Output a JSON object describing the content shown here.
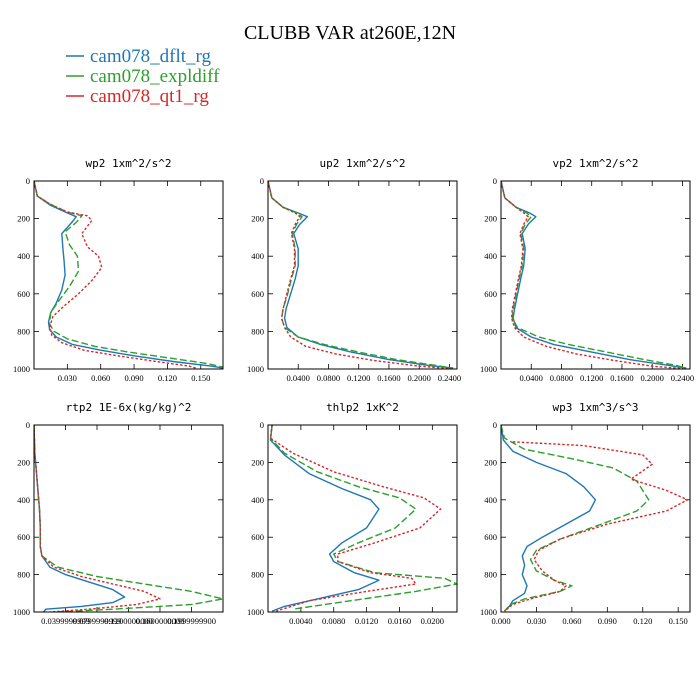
{
  "figure": {
    "title": "CLUBB VAR at260E,12N",
    "legend": [
      {
        "name": "cam078_dflt_rg",
        "color": "#1f77b4",
        "dash": "solid"
      },
      {
        "name": "cam078_expldiff",
        "color": "#2ca02c",
        "dash": "dashed"
      },
      {
        "name": "cam078_qt1_rg",
        "color": "#d62728",
        "dash": "dotted"
      }
    ]
  },
  "chart_data": [
    {
      "type": "line",
      "title": "wp2  1xm^2/s^2",
      "xlim": [
        0,
        0.17
      ],
      "ylim": [
        1000,
        0
      ],
      "y_ticks": [
        0,
        200,
        400,
        600,
        800,
        1000
      ],
      "x_ticks": [
        0.03,
        0.06,
        0.09,
        0.12,
        0.15
      ],
      "x_tick_labels": [
        "0.030",
        "0.060",
        "0.090",
        "0.120",
        "0.150"
      ],
      "series": [
        {
          "name": "cam078_dflt_rg",
          "x": [
            0,
            0.003,
            0.015,
            0.03,
            0.038,
            0.034,
            0.025,
            0.026,
            0.027,
            0.028,
            0.025,
            0.02,
            0.015,
            0.013,
            0.014,
            0.02,
            0.035,
            0.06,
            0.09,
            0.125,
            0.16,
            0.17
          ],
          "y": [
            0,
            80,
            130,
            170,
            190,
            220,
            280,
            360,
            420,
            500,
            580,
            650,
            700,
            750,
            790,
            830,
            870,
            900,
            930,
            960,
            985,
            995
          ]
        },
        {
          "name": "cam078_expldiff",
          "x": [
            0,
            0.003,
            0.015,
            0.03,
            0.043,
            0.038,
            0.028,
            0.032,
            0.039,
            0.04,
            0.032,
            0.022,
            0.015,
            0.014,
            0.018,
            0.03,
            0.055,
            0.085,
            0.12,
            0.155,
            0.17
          ],
          "y": [
            0,
            80,
            125,
            165,
            185,
            220,
            270,
            340,
            400,
            480,
            560,
            640,
            700,
            760,
            800,
            840,
            880,
            910,
            940,
            970,
            990
          ]
        },
        {
          "name": "cam078_qt1_rg",
          "x": [
            0,
            0.003,
            0.015,
            0.03,
            0.048,
            0.052,
            0.043,
            0.048,
            0.058,
            0.061,
            0.052,
            0.04,
            0.028,
            0.017,
            0.014,
            0.016,
            0.025,
            0.045,
            0.075,
            0.11,
            0.14,
            0.147
          ],
          "y": [
            0,
            80,
            125,
            165,
            185,
            210,
            280,
            350,
            400,
            460,
            530,
            600,
            660,
            720,
            780,
            820,
            860,
            900,
            930,
            960,
            985,
            998
          ]
        }
      ]
    },
    {
      "type": "line",
      "title": "up2  1xm^2/s^2",
      "xlim": [
        0,
        0.25
      ],
      "ylim": [
        1000,
        0
      ],
      "y_ticks": [
        0,
        200,
        400,
        600,
        800,
        1000
      ],
      "x_ticks": [
        0.04,
        0.08,
        0.12,
        0.16,
        0.2,
        0.24
      ],
      "x_tick_labels": [
        "0.0400",
        "0.0800",
        "0.1200",
        "0.1600",
        "0.2000",
        "0.2400"
      ],
      "series": [
        {
          "name": "cam078_dflt_rg",
          "x": [
            0,
            0.005,
            0.02,
            0.04,
            0.052,
            0.042,
            0.034,
            0.04,
            0.04,
            0.036,
            0.03,
            0.024,
            0.022,
            0.025,
            0.04,
            0.07,
            0.11,
            0.16,
            0.21,
            0.245
          ],
          "y": [
            0,
            90,
            140,
            170,
            190,
            230,
            280,
            360,
            450,
            520,
            600,
            680,
            730,
            780,
            830,
            870,
            910,
            950,
            980,
            995
          ]
        },
        {
          "name": "cam078_expldiff",
          "x": [
            0,
            0.005,
            0.02,
            0.038,
            0.045,
            0.038,
            0.032,
            0.036,
            0.036,
            0.031,
            0.026,
            0.02,
            0.018,
            0.022,
            0.04,
            0.075,
            0.12,
            0.17,
            0.22,
            0.245
          ],
          "y": [
            0,
            90,
            140,
            170,
            190,
            230,
            280,
            360,
            450,
            520,
            600,
            680,
            730,
            780,
            830,
            870,
            910,
            950,
            980,
            995
          ]
        },
        {
          "name": "cam078_qt1_rg",
          "x": [
            0,
            0.005,
            0.02,
            0.036,
            0.042,
            0.036,
            0.031,
            0.035,
            0.035,
            0.03,
            0.025,
            0.02,
            0.018,
            0.022,
            0.03,
            0.05,
            0.09,
            0.14,
            0.2,
            0.24
          ],
          "y": [
            0,
            90,
            140,
            170,
            190,
            230,
            280,
            360,
            450,
            520,
            600,
            680,
            730,
            780,
            830,
            880,
            920,
            955,
            985,
            998
          ]
        }
      ]
    },
    {
      "type": "line",
      "title": "vp2  1xm^2/s^2",
      "xlim": [
        0,
        0.25
      ],
      "ylim": [
        1000,
        0
      ],
      "y_ticks": [
        0,
        200,
        400,
        600,
        800,
        1000
      ],
      "x_ticks": [
        0.04,
        0.08,
        0.12,
        0.16,
        0.2,
        0.24
      ],
      "x_tick_labels": [
        "0.0400",
        "0.0800",
        "0.1200",
        "0.1600",
        "0.2000",
        "0.2400"
      ],
      "series": [
        {
          "name": "cam078_dflt_rg",
          "x": [
            0,
            0.005,
            0.02,
            0.038,
            0.046,
            0.036,
            0.028,
            0.032,
            0.03,
            0.026,
            0.022,
            0.018,
            0.016,
            0.02,
            0.04,
            0.07,
            0.12,
            0.17,
            0.22,
            0.245
          ],
          "y": [
            0,
            90,
            140,
            170,
            190,
            230,
            280,
            360,
            450,
            520,
            600,
            680,
            730,
            780,
            830,
            870,
            910,
            950,
            980,
            995
          ]
        },
        {
          "name": "cam078_expldiff",
          "x": [
            0,
            0.005,
            0.02,
            0.034,
            0.04,
            0.032,
            0.026,
            0.03,
            0.028,
            0.024,
            0.02,
            0.016,
            0.015,
            0.022,
            0.05,
            0.09,
            0.14,
            0.19,
            0.23,
            0.245
          ],
          "y": [
            0,
            90,
            140,
            170,
            190,
            230,
            280,
            360,
            450,
            520,
            600,
            680,
            730,
            780,
            830,
            870,
            910,
            950,
            980,
            995
          ]
        },
        {
          "name": "cam078_qt1_rg",
          "x": [
            0,
            0.005,
            0.02,
            0.03,
            0.036,
            0.03,
            0.025,
            0.029,
            0.027,
            0.023,
            0.019,
            0.015,
            0.014,
            0.018,
            0.03,
            0.06,
            0.1,
            0.15,
            0.2,
            0.24
          ],
          "y": [
            0,
            90,
            140,
            170,
            190,
            230,
            280,
            360,
            450,
            520,
            600,
            680,
            730,
            780,
            830,
            880,
            920,
            955,
            985,
            998
          ]
        }
      ]
    },
    {
      "type": "line",
      "title": "rtp2  1E-6x(kg/kg)^2",
      "xlim": [
        0,
        0.24
      ],
      "ylim": [
        1000,
        0
      ],
      "y_ticks": [
        0,
        200,
        400,
        600,
        800,
        1000
      ],
      "x_ticks": [
        0.04,
        0.08,
        0.12,
        0.16,
        0.2
      ],
      "x_tick_labels": [
        "0.0399999999",
        "0.0799999999",
        "0.1200000000",
        "0.1600000000",
        "0.1999999900"
      ],
      "series": [
        {
          "name": "cam078_dflt_rg",
          "x": [
            0,
            0.001,
            0.003,
            0.005,
            0.007,
            0.008,
            0.008,
            0.01,
            0.02,
            0.04,
            0.07,
            0.1,
            0.115,
            0.1,
            0.06,
            0.015,
            0.012
          ],
          "y": [
            0,
            150,
            250,
            350,
            450,
            550,
            650,
            700,
            760,
            800,
            840,
            880,
            920,
            950,
            970,
            985,
            1000
          ]
        },
        {
          "name": "cam078_expldiff",
          "x": [
            0,
            0.001,
            0.003,
            0.005,
            0.007,
            0.008,
            0.008,
            0.01,
            0.03,
            0.08,
            0.14,
            0.2,
            0.24,
            0.2,
            0.1,
            0.03
          ],
          "y": [
            0,
            150,
            250,
            350,
            450,
            550,
            650,
            700,
            760,
            810,
            850,
            890,
            930,
            960,
            985,
            1000
          ]
        },
        {
          "name": "cam078_qt1_rg",
          "x": [
            0,
            0.001,
            0.003,
            0.005,
            0.007,
            0.008,
            0.008,
            0.01,
            0.025,
            0.06,
            0.1,
            0.14,
            0.16,
            0.13,
            0.07,
            0.02
          ],
          "y": [
            0,
            150,
            250,
            350,
            450,
            550,
            650,
            700,
            760,
            810,
            850,
            890,
            930,
            960,
            985,
            1000
          ]
        }
      ]
    },
    {
      "type": "line",
      "title": "thlp2  1xK^2",
      "xlim": [
        0,
        0.023
      ],
      "ylim": [
        1000,
        0
      ],
      "y_ticks": [
        0,
        200,
        400,
        600,
        800,
        1000
      ],
      "x_ticks": [
        0.004,
        0.008,
        0.012,
        0.016,
        0.02
      ],
      "x_tick_labels": [
        "0.0040",
        "0.0080",
        "0.0120",
        "0.0160",
        "0.0200"
      ],
      "series": [
        {
          "name": "cam078_dflt_rg",
          "x": [
            0.0005,
            0.0003,
            0.002,
            0.005,
            0.009,
            0.0125,
            0.0135,
            0.012,
            0.009,
            0.0075,
            0.008,
            0.0105,
            0.0135,
            0.011,
            0.006,
            0.002,
            0.0005
          ],
          "y": [
            0,
            80,
            160,
            260,
            340,
            400,
            450,
            550,
            630,
            690,
            730,
            790,
            830,
            880,
            930,
            970,
            995
          ]
        },
        {
          "name": "cam078_expldiff",
          "x": [
            0.0005,
            0.0003,
            0.002,
            0.006,
            0.011,
            0.016,
            0.018,
            0.0155,
            0.011,
            0.008,
            0.0085,
            0.013,
            0.0215,
            0.023,
            0.018,
            0.01,
            0.003
          ],
          "y": [
            0,
            70,
            150,
            250,
            330,
            390,
            450,
            550,
            630,
            690,
            730,
            790,
            820,
            850,
            890,
            940,
            985
          ]
        },
        {
          "name": "cam078_qt1_rg",
          "x": [
            0.0005,
            0.0003,
            0.003,
            0.008,
            0.014,
            0.019,
            0.021,
            0.0185,
            0.013,
            0.0085,
            0.0085,
            0.0125,
            0.0175,
            0.018,
            0.012,
            0.005,
            0.001
          ],
          "y": [
            0,
            70,
            150,
            250,
            330,
            390,
            450,
            550,
            630,
            690,
            730,
            790,
            820,
            850,
            890,
            940,
            995
          ]
        }
      ]
    },
    {
      "type": "line",
      "title": "wp3  1xm^3/s^3",
      "xlim": [
        0,
        0.16
      ],
      "ylim": [
        1000,
        0
      ],
      "y_ticks": [
        0,
        200,
        400,
        600,
        800,
        1000
      ],
      "x_ticks": [
        0,
        0.03,
        0.06,
        0.09,
        0.12,
        0.15
      ],
      "x_tick_labels": [
        "0.000",
        "0.030",
        "0.060",
        "0.090",
        "0.120",
        "0.150"
      ],
      "series": [
        {
          "name": "cam078_dflt_rg",
          "x": [
            0,
            0.002,
            0.01,
            0.03,
            0.055,
            0.07,
            0.08,
            0.075,
            0.055,
            0.035,
            0.022,
            0.018,
            0.02,
            0.018,
            0.022,
            0.02,
            0.01,
            0.007,
            0.003
          ],
          "y": [
            0,
            80,
            140,
            200,
            260,
            330,
            400,
            460,
            530,
            600,
            650,
            700,
            750,
            800,
            860,
            900,
            940,
            970,
            995
          ]
        },
        {
          "name": "cam078_expldiff",
          "x": [
            0,
            0.003,
            0.02,
            0.06,
            0.095,
            0.115,
            0.125,
            0.115,
            0.085,
            0.05,
            0.03,
            0.025,
            0.03,
            0.045,
            0.06,
            0.05,
            0.02,
            0.008,
            0.003
          ],
          "y": [
            0,
            70,
            130,
            180,
            230,
            300,
            400,
            460,
            530,
            610,
            670,
            720,
            780,
            830,
            860,
            890,
            930,
            960,
            995
          ]
        },
        {
          "name": "cam078_qt1_rg",
          "x": [
            0.01,
            0.07,
            0.12,
            0.128,
            0.11,
            0.14,
            0.158,
            0.14,
            0.09,
            0.05,
            0.032,
            0.028,
            0.035,
            0.045,
            0.055,
            0.05,
            0.025,
            0.01,
            0.003
          ],
          "y": [
            90,
            110,
            160,
            210,
            290,
            350,
            400,
            460,
            530,
            610,
            670,
            720,
            780,
            830,
            860,
            890,
            930,
            960,
            995
          ]
        }
      ]
    }
  ]
}
